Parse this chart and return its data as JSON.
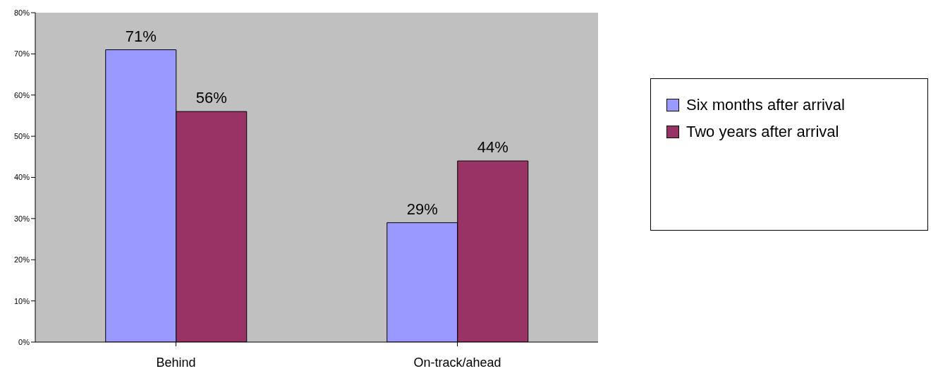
{
  "chart_data": {
    "type": "bar",
    "categories": [
      "Behind",
      "On-track/ahead"
    ],
    "series": [
      {
        "name": "Six months after arrival",
        "color": "#9999ff",
        "values": [
          71,
          29
        ],
        "value_labels": [
          "71%",
          "29%"
        ]
      },
      {
        "name": "Two years after arrival",
        "color": "#993366",
        "values": [
          56,
          44
        ],
        "value_labels": [
          "56%",
          "44%"
        ]
      }
    ],
    "ylim": [
      0,
      80
    ],
    "yticks": [
      {
        "value": 0,
        "label": "0%"
      },
      {
        "value": 10,
        "label": "10%"
      },
      {
        "value": 20,
        "label": "20%"
      },
      {
        "value": 30,
        "label": "30%"
      },
      {
        "value": 40,
        "label": "40%"
      },
      {
        "value": 50,
        "label": "50%"
      },
      {
        "value": 60,
        "label": "60%"
      },
      {
        "value": 70,
        "label": "70%"
      },
      {
        "value": 80,
        "label": "80%"
      }
    ],
    "legend": "right"
  }
}
